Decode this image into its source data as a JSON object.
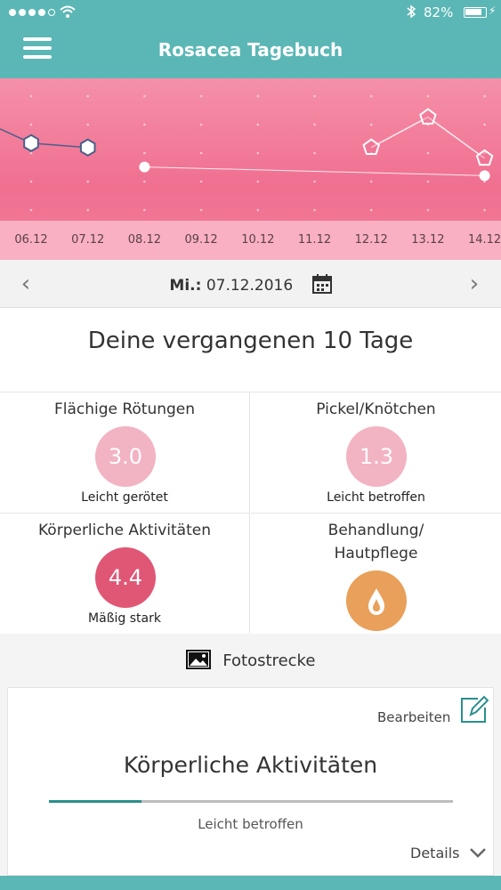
{
  "status_bar": {
    "battery_percent": "82%",
    "battery_level": 0.82,
    "signal_dots_filled": 4
  },
  "header": {
    "title": "Rosacea Tagebuch"
  },
  "chart_data": {
    "type": "line",
    "x": [
      "06.12",
      "07.12",
      "08.12",
      "09.12",
      "10.12",
      "11.12",
      "12.12",
      "13.12",
      "14.12"
    ],
    "series": [
      {
        "values": [
          3.5,
          3.3,
          null,
          null,
          null,
          null,
          null,
          null,
          null
        ],
        "marker": "hexagon",
        "color": "#4a5f8a"
      },
      {
        "values": [
          null,
          null,
          2.4,
          null,
          null,
          null,
          null,
          null,
          2.0
        ],
        "marker": "circle",
        "color": "#ffffff"
      },
      {
        "values": [
          null,
          null,
          null,
          null,
          null,
          null,
          3.3,
          4.7,
          2.8
        ],
        "marker": "pentagon",
        "color": "#ffffff"
      }
    ],
    "ylim": [
      0,
      6
    ],
    "grid": true
  },
  "date_nav": {
    "prefix": "Mi.:",
    "date": "07.12.2016"
  },
  "summary": {
    "title": "Deine vergangenen 10 Tage",
    "cells": [
      {
        "label": "Flächige Rötungen",
        "value": "3.0",
        "sub": "Leicht gerötet",
        "color": "#f2b3c2"
      },
      {
        "label": "Pickel/Knötchen",
        "value": "1.3",
        "sub": "Leicht betroffen",
        "color": "#f2b3c2"
      },
      {
        "label": "Körperliche Aktivitäten",
        "value": "4.4",
        "sub": "Mäßig stark",
        "color": "#e05775"
      },
      {
        "label": "Behandlung/\nHautpflege",
        "icon": "drop-icon",
        "color": "#e9a05a"
      }
    ]
  },
  "photo_section": {
    "label": "Fotostrecke"
  },
  "card": {
    "edit_label": "Bearbeiten",
    "title": "Körperliche Aktivitäten",
    "progress_fraction": 0.23,
    "progress_label": "Leicht betroffen",
    "details_label": "Details"
  },
  "colors": {
    "header": "#5bb7b5",
    "accent": "#2a8f8c"
  }
}
